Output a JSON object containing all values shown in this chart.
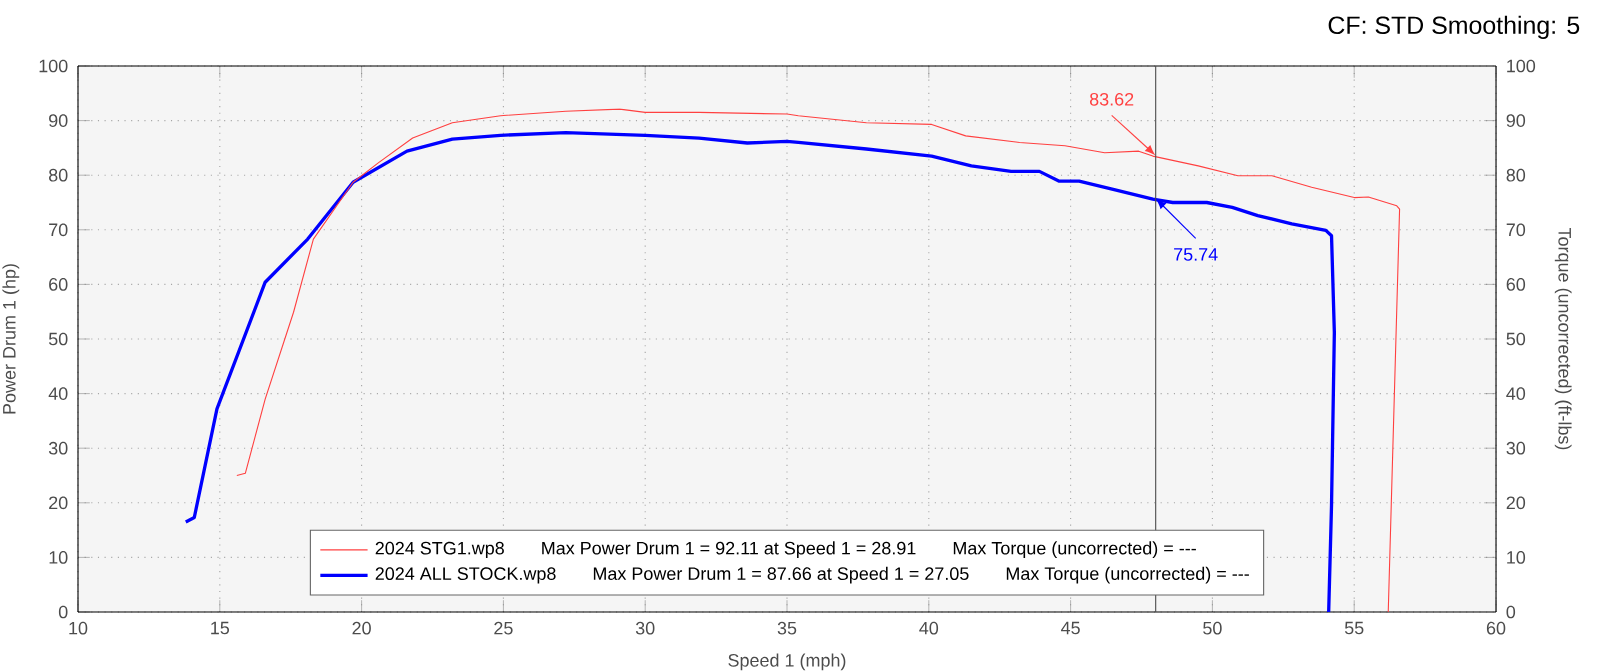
{
  "chart_data": {
    "type": "line",
    "xlabel": "Speed 1 (mph)",
    "ylabel": "Power Drum 1 (hp)",
    "y2label": "Torque (uncorrected) (ft-lbs)",
    "xlim": [
      10,
      60
    ],
    "xticks": [
      10,
      15,
      20,
      25,
      30,
      35,
      40,
      45,
      50,
      55,
      60
    ],
    "ylim": [
      0,
      100
    ],
    "yticks": [
      0,
      10,
      20,
      30,
      40,
      50,
      60,
      70,
      80,
      90,
      100
    ],
    "y2lim": [
      0,
      100
    ],
    "y2ticks": [
      0,
      10,
      20,
      30,
      40,
      50,
      60,
      70,
      80,
      90,
      100
    ],
    "grid": true,
    "legend": "bottom",
    "series": [
      {
        "name": "2024 STG1.wp8",
        "color": "#ff4040",
        "x": [
          15.6,
          15.9,
          16.6,
          17.6,
          18.3,
          19.7,
          20.6,
          21.8,
          23.2,
          24.9,
          27.2,
          29.1,
          30.0,
          31.9,
          35.0,
          35.4,
          37.8,
          40.1,
          41.3,
          43.2,
          44.8,
          46.2,
          47.4,
          47.9,
          49.5,
          50.9,
          52.1,
          53.5,
          55.0,
          55.5,
          56.5,
          56.6,
          56.2
        ],
        "values": [
          25.0,
          25.4,
          39.0,
          54.9,
          68.3,
          78.7,
          82.3,
          86.8,
          89.6,
          90.9,
          91.7,
          92.1,
          91.5,
          91.5,
          91.2,
          90.9,
          89.6,
          89.3,
          87.2,
          86.0,
          85.4,
          84.1,
          84.4,
          83.5,
          81.7,
          79.9,
          79.9,
          77.8,
          75.9,
          76.0,
          74.4,
          73.8,
          0
        ]
      },
      {
        "name": "2024 ALL STOCK.wp8",
        "color": "#0000ff",
        "x": [
          13.8,
          14.1,
          14.9,
          16.6,
          18.1,
          19.7,
          21.6,
          23.2,
          24.9,
          27.2,
          30.0,
          31.9,
          33.6,
          35.0,
          35.4,
          37.8,
          40.1,
          41.5,
          42.9,
          43.9,
          44.6,
          45.3,
          46.5,
          47.9,
          48.6,
          49.8,
          50.7,
          51.6,
          52.8,
          54.0,
          54.2,
          54.3,
          54.2,
          54.1
        ],
        "values": [
          16.5,
          17.3,
          37.2,
          60.4,
          68.3,
          78.7,
          84.4,
          86.6,
          87.3,
          87.8,
          87.3,
          86.8,
          85.9,
          86.2,
          86.0,
          84.8,
          83.5,
          81.7,
          80.7,
          80.7,
          78.9,
          78.9,
          77.4,
          75.6,
          75.0,
          75.0,
          74.1,
          72.6,
          71.1,
          69.9,
          68.9,
          51.2,
          19.5,
          0
        ]
      }
    ],
    "ref_lines": [
      {
        "axis": "x",
        "value": 48
      }
    ],
    "annotations": [
      "CF: STD Smoothing: 5",
      "Max Power Drum 1 = 92.11 at Speed 1 = 28.91",
      "Max Torque (uncorrected) = ---",
      "Max Power Drum 1 = 87.66 at Speed 1 = 27.05",
      "Max Torque (uncorrected) = ---",
      {
        "text": "83.62",
        "x": 48,
        "y": 83.62
      },
      {
        "text": "75.74",
        "x": 48,
        "y": 75.74
      }
    ]
  }
}
